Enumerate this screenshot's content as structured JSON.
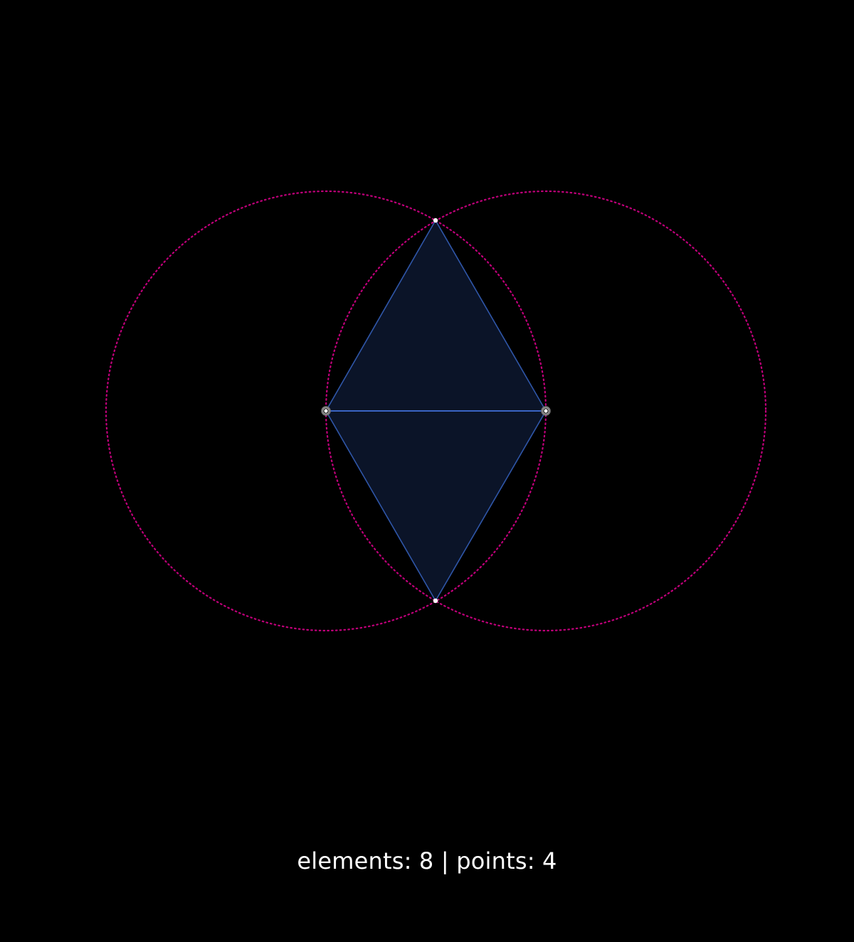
{
  "status": {
    "text": "elements: 8 | points: 4",
    "elements": 8,
    "points": 4
  },
  "colors": {
    "background": "#000000",
    "circle": "#c0007a",
    "triangle_fill": "#0b1428",
    "triangle_stroke": "#2f56a8",
    "segment": "#3a64c4",
    "point": "#ffffff"
  }
}
